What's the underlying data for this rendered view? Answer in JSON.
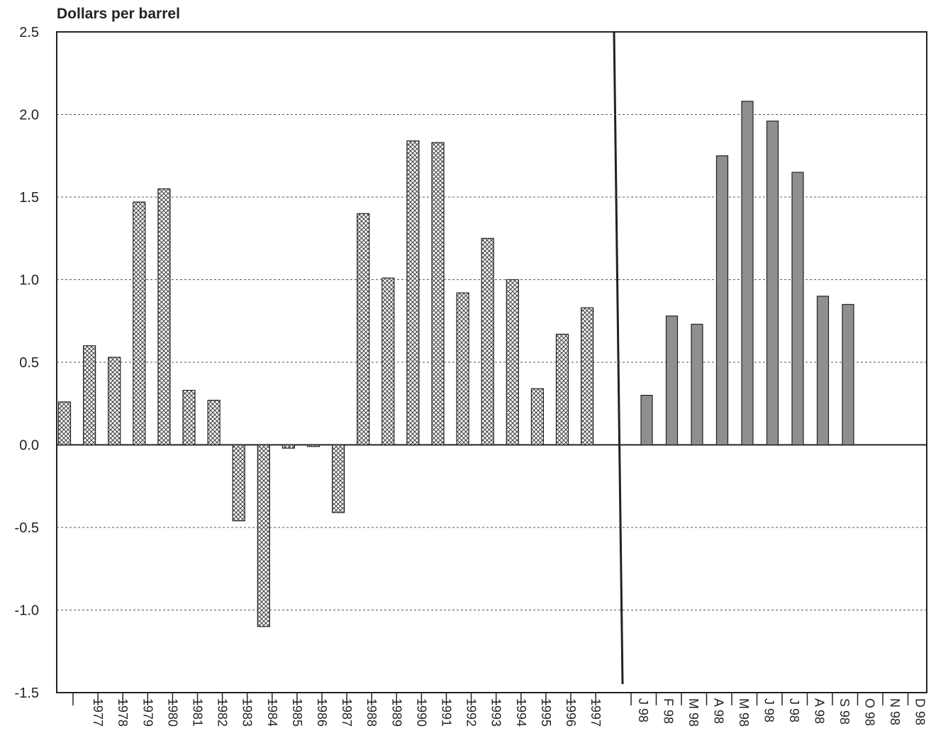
{
  "chart_data": [
    {
      "type": "bar",
      "title": "Dollars per barrel",
      "categories": [
        null,
        "1977",
        "1978",
        "1979",
        "1980",
        "1981",
        "1982",
        "1983",
        "1984",
        "1985",
        "1986",
        "1987",
        "1988",
        "1989",
        "1990",
        "1991",
        "1992",
        "1993",
        "1994",
        "1995",
        "1996",
        "1997"
      ],
      "values": [
        0.26,
        0.6,
        0.53,
        1.47,
        1.55,
        0.33,
        0.27,
        -0.46,
        -1.1,
        -0.02,
        -0.01,
        -0.41,
        1.4,
        1.01,
        1.84,
        1.83,
        0.92,
        1.25,
        1.0,
        0.34,
        0.67,
        0.83
      ],
      "color": "#444444",
      "pattern": "crosshatch",
      "ylim": [
        -1.5,
        2.5
      ],
      "yticks": [
        {
          "value": -1.5,
          "label": "-1.5"
        },
        {
          "value": -1,
          "label": "-1.0"
        },
        -0.5,
        {
          "value": 0,
          "label": "0.0"
        },
        0.5,
        {
          "value": 1,
          "label": "1.0"
        },
        1.5,
        {
          "value": 2,
          "label": "2.0"
        },
        2.5
      ],
      "grid": true
    },
    {
      "type": "bar",
      "categories": [
        "J 98",
        "F 98",
        "M 98",
        "A 98",
        "M 98",
        "J 98",
        "J 98",
        "A 98",
        "S 98",
        "O 98",
        "N 98",
        "D 98"
      ],
      "values": [
        0.3,
        0.78,
        0.73,
        1.75,
        2.08,
        1.96,
        1.65,
        0.9,
        0.85,
        null,
        null,
        null
      ],
      "color": "#8f8f8f",
      "pattern": "solid",
      "ylim": [
        -1.5,
        2.5
      ],
      "grid": true
    }
  ]
}
